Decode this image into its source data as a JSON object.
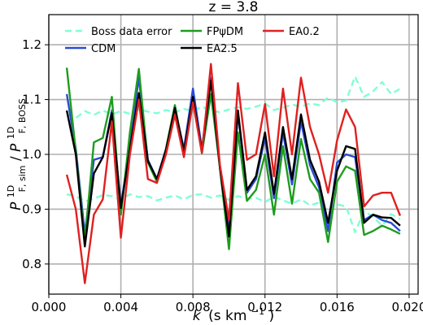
{
  "chart_data": {
    "type": "line",
    "title": "z = 3.8",
    "xlabel": {
      "main": "k",
      "unit": "(s km",
      "exp": "−1",
      "close": ")"
    },
    "ylabel": {
      "p1": "P",
      "p1sup": "1D",
      "p1sub": "F, sim",
      "slash": "/",
      "p2": "P",
      "p2sup": "1D",
      "p2sub": "F, BOSS"
    },
    "xlim": [
      0.0,
      0.0205
    ],
    "ylim": [
      0.745,
      1.255
    ],
    "xticks": [
      0.0,
      0.004,
      0.008,
      0.012,
      0.016,
      0.02
    ],
    "xtick_labels": [
      "0.000",
      "0.004",
      "0.008",
      "0.012",
      "0.016",
      "0.020"
    ],
    "yticks": [
      0.8,
      0.9,
      1.0,
      1.1,
      1.2
    ],
    "ytick_labels": [
      "0.8",
      "0.9",
      "1.0",
      "1.1",
      "1.2"
    ],
    "grid": true,
    "legend_placement": "top-center",
    "x": [
      0.001,
      0.0015,
      0.002,
      0.0025,
      0.003,
      0.0035,
      0.004,
      0.0045,
      0.005,
      0.0055,
      0.006,
      0.0065,
      0.007,
      0.0075,
      0.008,
      0.0085,
      0.009,
      0.0095,
      0.01,
      0.0105,
      0.011,
      0.0115,
      0.012,
      0.0125,
      0.013,
      0.0135,
      0.014,
      0.0145,
      0.015,
      0.0155,
      0.016,
      0.0165,
      0.017,
      0.0175,
      0.018,
      0.0185,
      0.019,
      0.0195
    ],
    "series": [
      {
        "name": "Boss data error",
        "color": "#7fffd4",
        "dashed": true,
        "values": [
          1.074,
          1.066,
          1.079,
          1.072,
          1.08,
          1.073,
          1.079,
          1.074,
          1.082,
          1.078,
          1.075,
          1.081,
          1.077,
          1.083,
          1.079,
          1.087,
          1.08,
          1.077,
          1.082,
          1.086,
          1.083,
          1.087,
          1.093,
          1.081,
          1.085,
          1.091,
          1.087,
          1.093,
          1.09,
          1.104,
          1.095,
          1.098,
          1.142,
          1.105,
          1.115,
          1.132,
          1.11,
          1.12
        ]
      },
      {
        "name": "Boss data error",
        "color": "#7fffd4",
        "dashed": true,
        "values": [
          0.927,
          0.924,
          0.914,
          0.919,
          0.926,
          0.924,
          0.918,
          0.927,
          0.922,
          0.924,
          0.916,
          0.921,
          0.925,
          0.918,
          0.926,
          0.927,
          0.921,
          0.925,
          0.917,
          0.924,
          0.919,
          0.921,
          0.913,
          0.923,
          0.916,
          0.91,
          0.918,
          0.907,
          0.912,
          0.896,
          0.909,
          0.905,
          0.858,
          0.897,
          0.886,
          0.87,
          0.891,
          0.882
        ]
      },
      {
        "name": "CDM",
        "color": "#2b4bd6",
        "dashed": false,
        "values": [
          1.11,
          1.01,
          0.855,
          0.99,
          0.995,
          1.08,
          0.905,
          1.02,
          1.14,
          0.99,
          0.955,
          1.01,
          1.085,
          1.01,
          1.12,
          1.01,
          1.14,
          0.975,
          0.86,
          1.075,
          0.93,
          0.955,
          1.03,
          0.92,
          1.04,
          0.945,
          1.06,
          0.98,
          0.94,
          0.86,
          0.985,
          1.0,
          0.995,
          0.88,
          0.89,
          0.88,
          0.875,
          0.86
        ]
      },
      {
        "name": "FPψDM",
        "color": "#1e9c1e",
        "dashed": false,
        "values": [
          1.158,
          1.005,
          0.842,
          1.022,
          1.03,
          1.105,
          0.89,
          1.04,
          1.156,
          0.985,
          0.95,
          1.01,
          1.09,
          1.0,
          1.1,
          1.002,
          1.11,
          0.975,
          0.827,
          1.04,
          0.915,
          0.935,
          1.0,
          0.89,
          1.015,
          0.91,
          1.028,
          0.955,
          0.93,
          0.84,
          0.95,
          0.978,
          0.97,
          0.853,
          0.86,
          0.87,
          0.863,
          0.855
        ]
      },
      {
        "name": "EA2.5",
        "color": "#000000",
        "dashed": false,
        "values": [
          1.08,
          1.0,
          0.832,
          0.965,
          0.995,
          1.075,
          0.902,
          1.01,
          1.112,
          0.988,
          0.955,
          1.008,
          1.085,
          1.005,
          1.105,
          1.005,
          1.135,
          0.975,
          0.85,
          1.08,
          0.935,
          0.96,
          1.04,
          0.928,
          1.05,
          0.955,
          1.073,
          0.99,
          0.95,
          0.875,
          0.97,
          1.015,
          1.01,
          0.875,
          0.89,
          0.885,
          0.884,
          0.87
        ]
      },
      {
        "name": "EA0.2",
        "color": "#e02020",
        "dashed": false,
        "values": [
          0.963,
          0.9,
          0.765,
          0.89,
          0.918,
          1.06,
          0.848,
          1.0,
          1.1,
          0.955,
          0.948,
          1.0,
          1.072,
          0.995,
          1.095,
          1.003,
          1.165,
          0.98,
          0.88,
          1.13,
          0.99,
          1.0,
          1.092,
          0.96,
          1.12,
          1.0,
          1.14,
          1.05,
          1.0,
          0.93,
          1.025,
          1.082,
          1.05,
          0.905,
          0.925,
          0.93,
          0.93,
          0.888
        ]
      }
    ],
    "legend": [
      {
        "label": "Boss data error",
        "color": "#7fffd4",
        "dashed": true
      },
      {
        "label": "CDM",
        "color": "#2b4bd6",
        "dashed": false
      },
      {
        "label": "FPψDM",
        "color": "#1e9c1e",
        "dashed": false
      },
      {
        "label": "EA2.5",
        "color": "#000000",
        "dashed": false
      },
      {
        "label": "EA0.2",
        "color": "#e02020",
        "dashed": false
      }
    ]
  }
}
